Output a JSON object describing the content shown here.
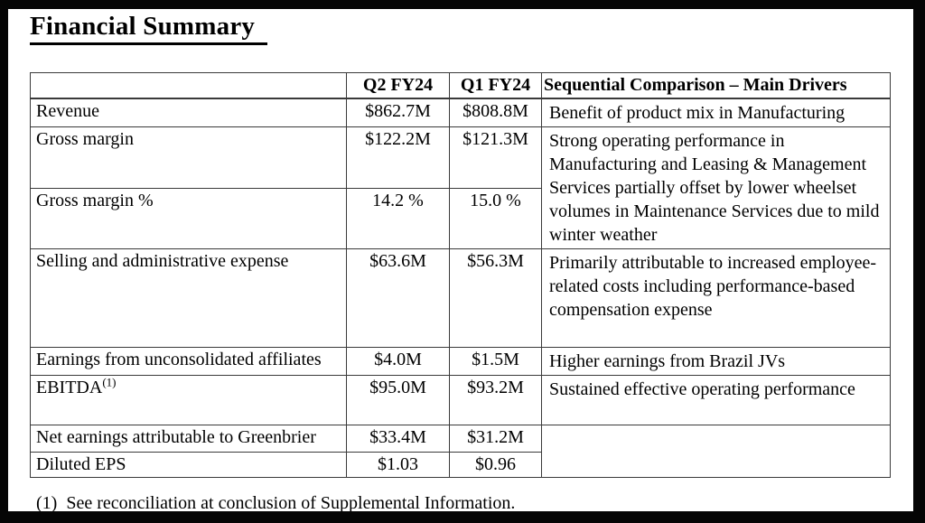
{
  "page": {
    "title": "Financial Summary",
    "footnote": {
      "marker": "(1)",
      "text": "See reconciliation at conclusion of Supplemental Information."
    }
  },
  "colors": {
    "frame": "#050505",
    "table_border": "#3a3a3a",
    "text": "#000000",
    "background": "#ffffff"
  },
  "table": {
    "headers": {
      "metric": "",
      "q2": "Q2 FY24",
      "q1": "Q1 FY24",
      "comment": "Sequential Comparison – Main Drivers"
    },
    "rows": [
      {
        "label": "Revenue",
        "q2": "$862.7M",
        "q1": "$808.8M",
        "comment": "Benefit of product mix in Manufacturing"
      },
      {
        "label": "Gross margin",
        "q2": "$122.2M",
        "q1": "$121.3M",
        "comment": "Strong operating performance in Manufacturing and Leasing & Management Services partially offset by lower wheelset volumes in Maintenance Services due to mild winter weather"
      },
      {
        "label": "Gross margin %",
        "q2": "14.2 %",
        "q1": "15.0 %"
      },
      {
        "label": "Selling and administrative expense",
        "q2": "$63.6M",
        "q1": "$56.3M",
        "comment": "Primarily attributable to increased employee-related costs including performance-based compensation expense"
      },
      {
        "label": "Earnings from unconsolidated affiliates",
        "q2": "$4.0M",
        "q1": "$1.5M",
        "comment": "Higher earnings from Brazil JVs"
      },
      {
        "label": "EBITDA",
        "label_superscript": "(1)",
        "q2": "$95.0M",
        "q1": "$93.2M",
        "comment": "Sustained effective operating performance"
      },
      {
        "label": "Net earnings attributable to Greenbrier",
        "q2": "$33.4M",
        "q1": "$31.2M",
        "comment": ""
      },
      {
        "label": "Diluted EPS",
        "q2": "$1.03",
        "q1": "$0.96"
      }
    ]
  }
}
